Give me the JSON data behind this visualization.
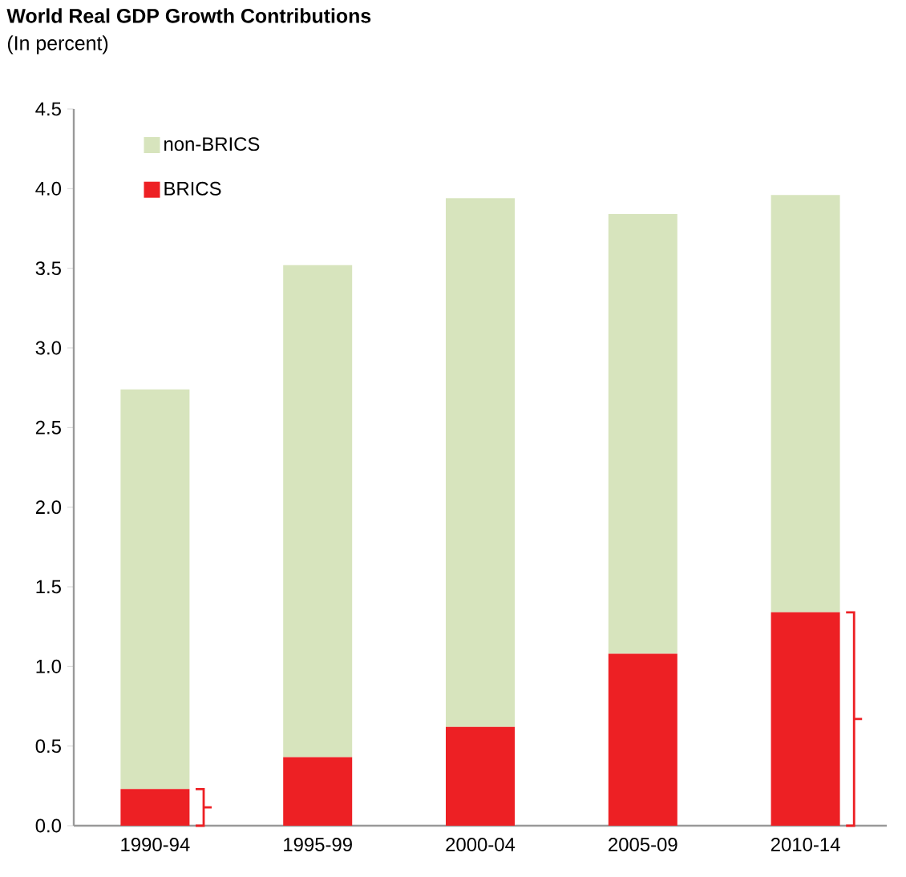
{
  "chart_data": {
    "type": "bar",
    "title": "World Real GDP Growth Contributions",
    "subtitle": "(In percent)",
    "categories": [
      "1990-94",
      "1995-99",
      "2000-04",
      "2005-09",
      "2010-14"
    ],
    "stacked": true,
    "series": [
      {
        "name": "BRICS",
        "color": "#ed2024",
        "values": [
          0.23,
          0.43,
          0.62,
          1.08,
          1.34
        ]
      },
      {
        "name": "non-BRICS",
        "color": "#d7e4bd",
        "values": [
          2.51,
          3.09,
          3.32,
          2.76,
          2.62
        ]
      }
    ],
    "ylim": [
      0,
      4.5
    ],
    "yticks": [
      {
        "value": 0,
        "label": "0.0"
      },
      {
        "value": 0.5,
        "label": "0.5"
      },
      {
        "value": 1,
        "label": "1.0"
      },
      {
        "value": 1.5,
        "label": "1.5"
      },
      {
        "value": 2,
        "label": "2.0"
      },
      {
        "value": 2.5,
        "label": "2.5"
      },
      {
        "value": 3,
        "label": "3.0"
      },
      {
        "value": 3.5,
        "label": "3.5"
      },
      {
        "value": 4,
        "label": "4.0"
      },
      {
        "value": 4.5,
        "label": "4.5"
      }
    ],
    "legend": "top left",
    "grid": false
  }
}
